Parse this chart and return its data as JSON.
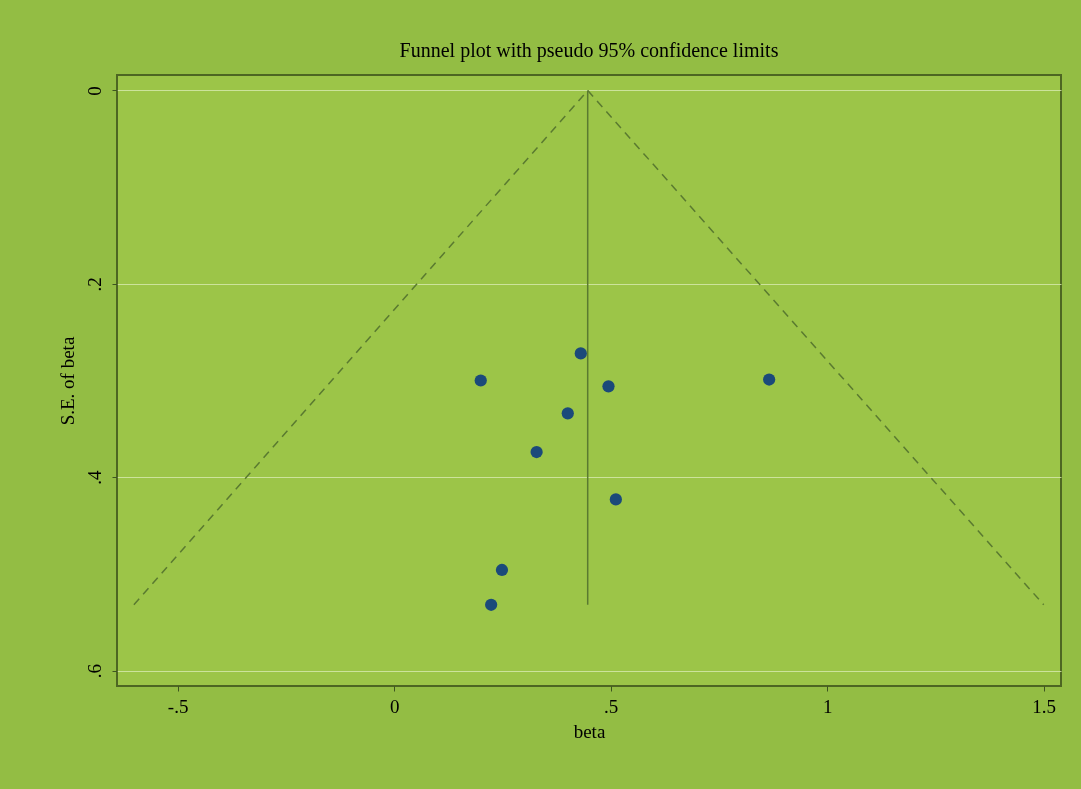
{
  "chart_data": {
    "type": "scatter",
    "title": "Funnel plot with pseudo 95% confidence limits",
    "xlabel": "beta",
    "ylabel": "S.E. of beta",
    "xlim": [
      -0.64,
      1.54
    ],
    "ylim": [
      0.616,
      -0.016
    ],
    "xticks": [
      {
        "value": -0.5,
        "label": "-.5"
      },
      0,
      {
        "value": 0.5,
        "label": ".5"
      },
      1,
      {
        "value": 1.5,
        "label": "1.5"
      }
    ],
    "yticks": [
      0,
      {
        "value": 0.2,
        "label": ".2"
      },
      {
        "value": 0.4,
        "label": ".4"
      },
      {
        "value": 0.6,
        "label": ".6"
      }
    ],
    "grid": "y",
    "series": [
      {
        "marker": "circle",
        "color": "#1b4a7a",
        "x": [
          0.2,
          0.431,
          0.495,
          0.401,
          0.329,
          0.512,
          0.866,
          0.249,
          0.224
        ],
        "values": [
          0.3,
          0.272,
          0.306,
          0.334,
          0.374,
          0.423,
          0.299,
          0.496,
          0.532
        ]
      },
      {
        "type": "line",
        "color": "#5a7a30",
        "line_style": "dashed",
        "x": [
          -0.601,
          0.447,
          1.5
        ],
        "values": [
          0.532,
          0,
          0.532
        ]
      },
      {
        "type": "line",
        "color": "#5a7a30",
        "line_style": "solid",
        "x": [
          0.447,
          0.447
        ],
        "values": [
          0,
          0.532
        ]
      }
    ]
  }
}
